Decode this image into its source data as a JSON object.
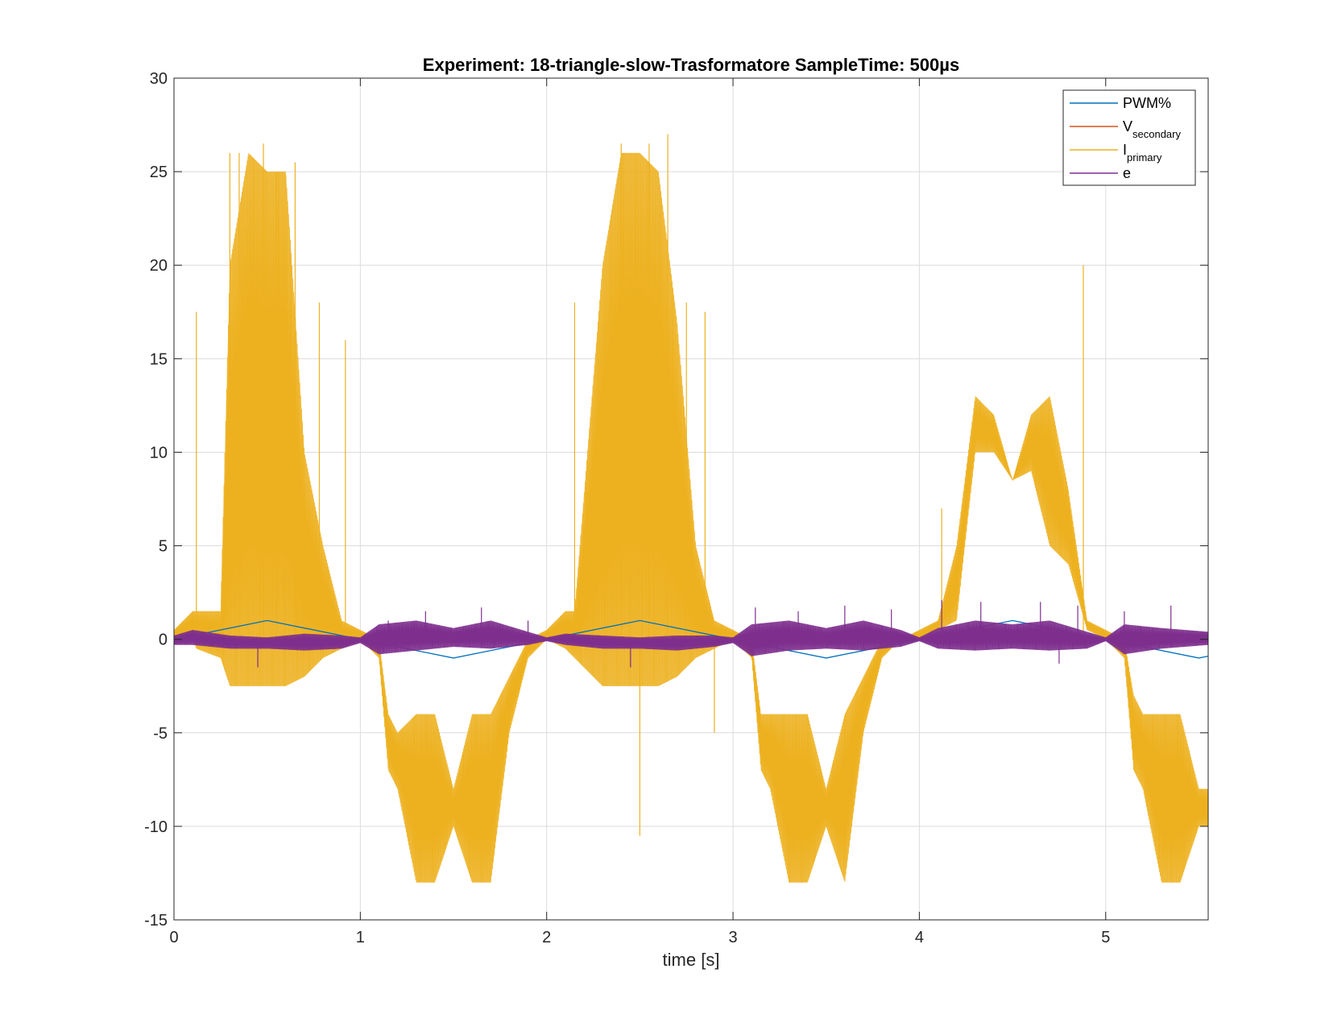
{
  "chart_data": {
    "type": "line",
    "title": "Experiment: 18-triangle-slow-Trasformatore   SampleTime: 500µs",
    "xlabel": "time [s]",
    "ylabel": "",
    "xlim": [
      0,
      5.55
    ],
    "ylim": [
      -15,
      30
    ],
    "xticks": [
      0,
      1,
      2,
      3,
      4,
      5
    ],
    "yticks": [
      -15,
      -10,
      -5,
      0,
      5,
      10,
      15,
      20,
      25,
      30
    ],
    "grid": true,
    "legend_position": "top-right",
    "series": [
      {
        "name": "PWM%",
        "legend_main": "PWM%",
        "legend_sub": "",
        "color": "#0072BD",
        "x": [
          0,
          0.5,
          1.0,
          1.5,
          2.0,
          2.5,
          3.0,
          3.5,
          4.0,
          4.5,
          5.0,
          5.5,
          5.55
        ],
        "y": [
          0,
          1.0,
          0,
          -1.0,
          0,
          1.0,
          0,
          -1.0,
          0,
          1.0,
          0,
          -1.0,
          -0.9
        ]
      },
      {
        "name": "Vsecondary",
        "legend_main": "V",
        "legend_sub": "secondary",
        "color": "#D95319",
        "x": [
          0,
          5.55
        ],
        "y": [
          0,
          0
        ]
      },
      {
        "name": "Iprimary",
        "legend_main": "I",
        "legend_sub": "primary",
        "color": "#EDB120",
        "envelope": {
          "x": [
            0,
            0.1,
            0.12,
            0.25,
            0.3,
            0.4,
            0.5,
            0.6,
            0.7,
            0.8,
            0.9,
            1.0,
            1.1,
            1.15,
            1.2,
            1.3,
            1.4,
            1.5,
            1.6,
            1.7,
            1.8,
            1.9,
            2.0,
            2.1,
            2.15,
            2.3,
            2.4,
            2.5,
            2.6,
            2.7,
            2.8,
            2.9,
            3.0,
            3.1,
            3.15,
            3.2,
            3.3,
            3.4,
            3.5,
            3.6,
            3.7,
            3.8,
            3.9,
            4.0,
            4.1,
            4.2,
            4.3,
            4.4,
            4.5,
            4.6,
            4.7,
            4.8,
            4.9,
            5.0,
            5.1,
            5.15,
            5.2,
            5.3,
            5.4,
            5.5,
            5.55
          ],
          "upper": [
            0.5,
            1.5,
            1.5,
            1.5,
            20,
            26,
            25,
            25,
            10,
            5,
            1,
            0.5,
            0,
            -4,
            -5,
            -4,
            -4,
            -8,
            -4,
            -4,
            -2,
            0,
            0.5,
            1.5,
            1.5,
            20,
            26,
            26,
            25,
            17,
            5,
            1,
            0.5,
            0,
            -4,
            -4,
            -4,
            -4,
            -8,
            -4,
            -2,
            0,
            0,
            0.5,
            1,
            5,
            13,
            12,
            8.5,
            12,
            13,
            8,
            1,
            0.5,
            0,
            -3,
            -4,
            -4,
            -4,
            -8,
            -8
          ],
          "lower": [
            0,
            0,
            -0.5,
            -1,
            -2.5,
            -2.5,
            -2.5,
            -2.5,
            -2,
            -1,
            -0.5,
            0,
            -1,
            -7,
            -8,
            -13,
            -13,
            -10,
            -13,
            -13,
            -5,
            -1,
            0,
            -0.5,
            -1,
            -2.5,
            -2.5,
            -2.5,
            -2.5,
            -2,
            -1,
            -0.5,
            0,
            -1,
            -7,
            -8,
            -13,
            -13,
            -10,
            -13,
            -5,
            -1,
            0,
            0,
            0.5,
            1,
            10,
            10,
            8.5,
            9,
            5,
            4,
            0.5,
            0,
            -1,
            -7,
            -8,
            -13,
            -13,
            -10,
            -10
          ]
        },
        "spikes": [
          {
            "x": 0.12,
            "y": 17.5
          },
          {
            "x": 0.3,
            "y": 26
          },
          {
            "x": 0.35,
            "y": 26
          },
          {
            "x": 0.48,
            "y": 26.5
          },
          {
            "x": 0.55,
            "y": 25
          },
          {
            "x": 0.65,
            "y": 25.5
          },
          {
            "x": 0.78,
            "y": 18
          },
          {
            "x": 0.92,
            "y": 16
          },
          {
            "x": 2.15,
            "y": 18
          },
          {
            "x": 2.4,
            "y": 26.5
          },
          {
            "x": 2.55,
            "y": 26.5
          },
          {
            "x": 2.65,
            "y": 27
          },
          {
            "x": 2.75,
            "y": 18
          },
          {
            "x": 2.85,
            "y": 17.5
          },
          {
            "x": 2.5,
            "y": -10.5
          },
          {
            "x": 2.9,
            "y": -5
          },
          {
            "x": 4.88,
            "y": 20
          },
          {
            "x": 4.12,
            "y": 7
          }
        ]
      },
      {
        "name": "e",
        "legend_main": "e",
        "legend_sub": "",
        "color": "#7E2F8E",
        "envelope": {
          "x": [
            0,
            0.1,
            0.3,
            0.5,
            0.7,
            0.9,
            1.0,
            1.1,
            1.3,
            1.5,
            1.7,
            1.9,
            2.0,
            2.1,
            2.3,
            2.5,
            2.7,
            2.9,
            3.0,
            3.1,
            3.3,
            3.5,
            3.7,
            3.9,
            4.0,
            4.1,
            4.3,
            4.5,
            4.7,
            4.9,
            5.0,
            5.1,
            5.3,
            5.55
          ],
          "upper": [
            0.2,
            0.5,
            0.2,
            0.1,
            0.3,
            0.2,
            0.1,
            0.8,
            1.0,
            0.6,
            1.0,
            0.4,
            0.1,
            0.3,
            0.2,
            0.1,
            0.2,
            0.2,
            0.1,
            0.8,
            1.0,
            0.6,
            1.0,
            0.5,
            0.1,
            0.6,
            1.0,
            0.8,
            1.0,
            0.4,
            0.1,
            0.8,
            0.6,
            0.4
          ],
          "lower": [
            -0.3,
            -0.3,
            -0.5,
            -0.5,
            -0.6,
            -0.5,
            -0.2,
            -0.8,
            -0.6,
            -0.4,
            -0.5,
            -0.3,
            -0.1,
            -0.3,
            -0.5,
            -0.5,
            -0.6,
            -0.4,
            -0.2,
            -0.9,
            -0.6,
            -0.5,
            -0.6,
            -0.4,
            -0.1,
            -0.5,
            -0.6,
            -0.5,
            -0.6,
            -0.5,
            -0.1,
            -0.8,
            -0.5,
            -0.3
          ]
        },
        "spikes": [
          {
            "x": 1.15,
            "y": 1.0
          },
          {
            "x": 1.35,
            "y": 1.5
          },
          {
            "x": 1.65,
            "y": 1.7
          },
          {
            "x": 1.9,
            "y": 1.0
          },
          {
            "x": 3.12,
            "y": 1.7
          },
          {
            "x": 3.35,
            "y": 1.5
          },
          {
            "x": 3.6,
            "y": 1.8
          },
          {
            "x": 3.85,
            "y": 1.6
          },
          {
            "x": 4.12,
            "y": 2.1
          },
          {
            "x": 4.33,
            "y": 2.0
          },
          {
            "x": 4.65,
            "y": 2.0
          },
          {
            "x": 4.85,
            "y": 1.8
          },
          {
            "x": 5.1,
            "y": 1.5
          },
          {
            "x": 5.35,
            "y": 1.8
          },
          {
            "x": 0.45,
            "y": -1.5
          },
          {
            "x": 2.45,
            "y": -1.5
          },
          {
            "x": 4.75,
            "y": -1.3
          }
        ]
      }
    ]
  }
}
